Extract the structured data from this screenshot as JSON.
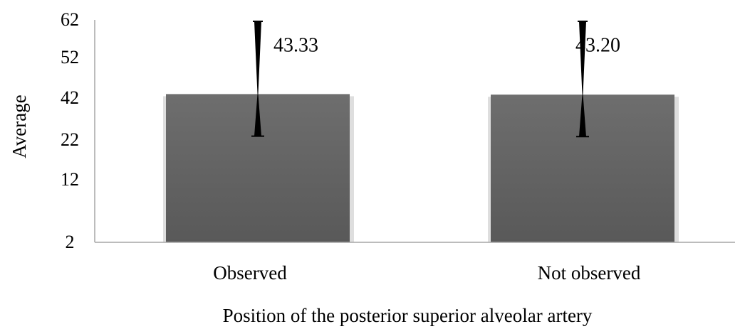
{
  "chart_data": {
    "type": "bar",
    "title": "",
    "xlabel": "Position of the posterior superior alveolar artery",
    "ylabel": "Average",
    "categories": [
      "Observed",
      "Not observed"
    ],
    "values": [
      43.33,
      43.2
    ],
    "data_labels": [
      "43.33",
      "43.20"
    ],
    "error_bars": [
      {
        "low": 24.5,
        "high": 62
      },
      {
        "low": 24.3,
        "high": 62
      }
    ],
    "yticks": [
      "2",
      "12",
      "22",
      "42",
      "52",
      "62"
    ],
    "legend": "none",
    "grid": false,
    "colors": {
      "bar": "#5e5e5e",
      "bar_top": "#6e6e6e",
      "bar_shadow": "#c8c8c8",
      "axis": "#a6a6a6",
      "error_bar": "#000000"
    }
  }
}
